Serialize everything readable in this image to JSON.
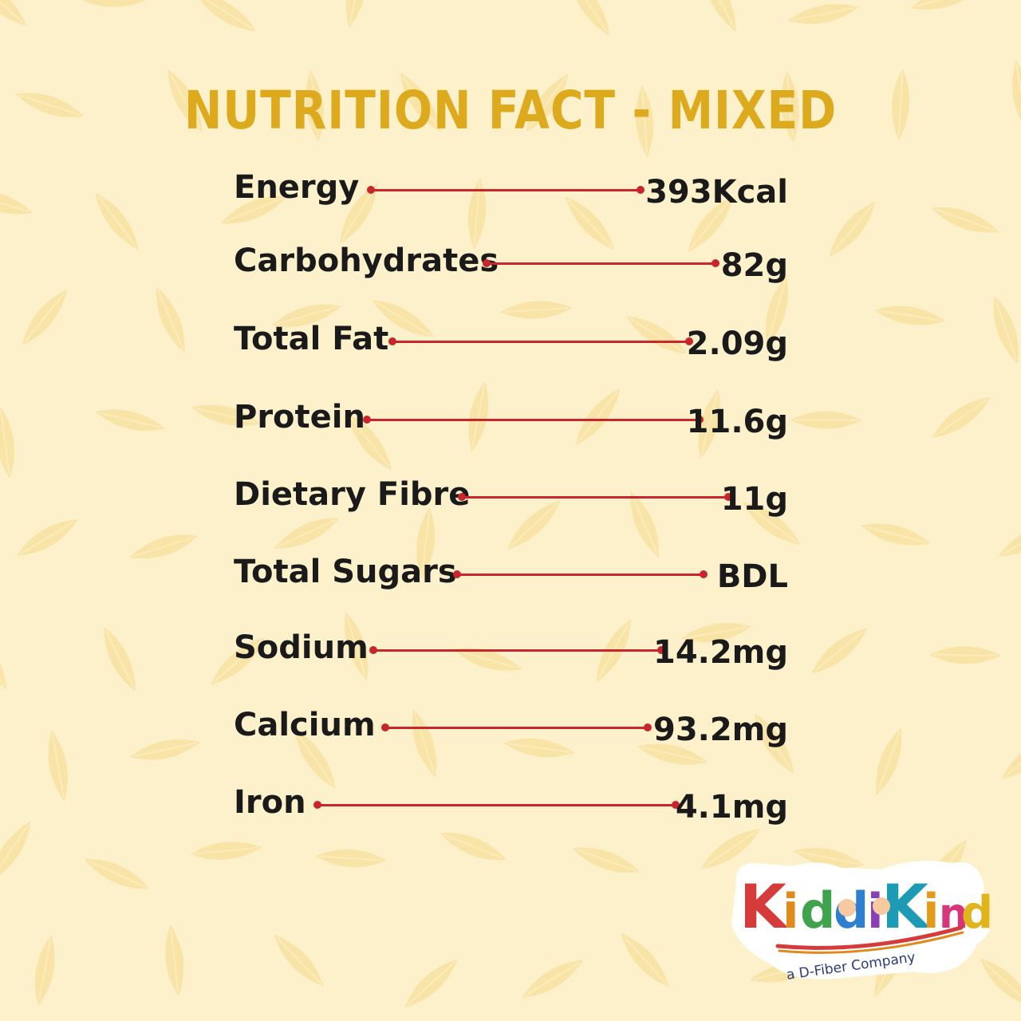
{
  "title": "NUTRITION FACT - MIXED",
  "facts": [
    {
      "label": "Energy",
      "value": "393Kcal"
    },
    {
      "label": "Carbohydrates",
      "value": "82g"
    },
    {
      "label": "Total Fat",
      "value": "2.09g"
    },
    {
      "label": "Protein",
      "value": "11.6g"
    },
    {
      "label": "Dietary Fibre",
      "value": "11g"
    },
    {
      "label": "Total Sugars",
      "value": "BDL"
    },
    {
      "label": "Sodium",
      "value": "14.2mg"
    },
    {
      "label": "Calcium",
      "value": "93.2mg"
    },
    {
      "label": "Iron",
      "value": "4.1mg"
    }
  ],
  "logo": {
    "brand": "KiddiKind",
    "tagline": "a D-Fiber Company"
  },
  "colors": {
    "background": "#fdf1cc",
    "title": "#dcaa1c",
    "connector": "#c8262c",
    "text": "#1a1a1a"
  }
}
